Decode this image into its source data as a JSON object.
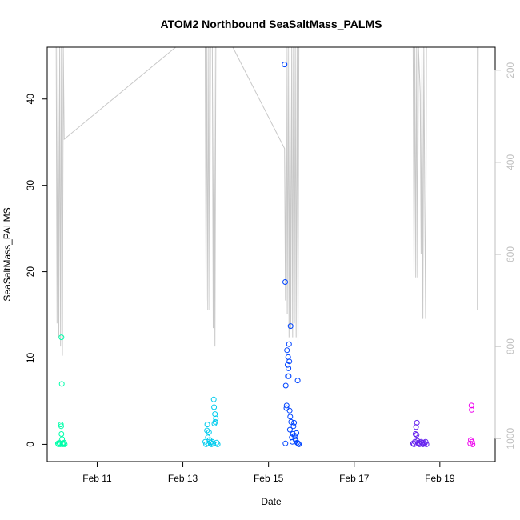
{
  "chart_data": {
    "type": "scatter",
    "title": "ATOM2 Northbound SeaSaltMass_PALMS",
    "xlabel": "Date",
    "ylabel": "SeaSaltMass_PALMS",
    "xlim": [
      "2017-02-09 20:00",
      "2017-02-20 07:00"
    ],
    "ylim": [
      -2,
      46
    ],
    "x_ticks": [
      {
        "x": "2017-02-11",
        "label": "Feb 11"
      },
      {
        "x": "2017-02-13",
        "label": "Feb 13"
      },
      {
        "x": "2017-02-15",
        "label": "Feb 15"
      },
      {
        "x": "2017-02-17",
        "label": "Feb 17"
      },
      {
        "x": "2017-02-19",
        "label": "Feb 19"
      }
    ],
    "y_ticks": [
      0,
      10,
      20,
      30,
      40
    ],
    "right_axis": {
      "label_color": "#bfbfbf",
      "reversed": true,
      "range": [
        150,
        1050
      ],
      "ticks": [
        200,
        400,
        600,
        800,
        1000
      ]
    },
    "grid": false,
    "marker": "open-circle",
    "secondary_line_color": "#c8c8c8",
    "series": [
      {
        "color": "#00ffaa",
        "points": [
          {
            "x": "2017-02-10 02:00",
            "y": 0.1
          },
          {
            "x": "2017-02-10 02:20",
            "y": 0.0
          },
          {
            "x": "2017-02-10 02:40",
            "y": 0.2
          },
          {
            "x": "2017-02-10 03:00",
            "y": 0.1
          },
          {
            "x": "2017-02-10 03:20",
            "y": 0.0
          },
          {
            "x": "2017-02-10 03:40",
            "y": 2.3
          },
          {
            "x": "2017-02-10 03:50",
            "y": 2.1
          },
          {
            "x": "2017-02-10 04:00",
            "y": 1.2
          },
          {
            "x": "2017-02-10 04:00",
            "y": 12.4
          },
          {
            "x": "2017-02-10 04:10",
            "y": 7.0
          },
          {
            "x": "2017-02-10 04:20",
            "y": 0.6
          },
          {
            "x": "2017-02-10 04:30",
            "y": 0.1
          },
          {
            "x": "2017-02-10 04:50",
            "y": 0.0
          },
          {
            "x": "2017-02-10 05:10",
            "y": 0.1
          },
          {
            "x": "2017-02-10 05:30",
            "y": 0.2
          },
          {
            "x": "2017-02-10 05:50",
            "y": 0.0
          }
        ]
      },
      {
        "color": "#00ccee",
        "points": [
          {
            "x": "2017-02-13 12:30",
            "y": 0.3
          },
          {
            "x": "2017-02-13 13:00",
            "y": 0.0
          },
          {
            "x": "2017-02-13 13:30",
            "y": 1.6
          },
          {
            "x": "2017-02-13 13:40",
            "y": 2.3
          },
          {
            "x": "2017-02-13 14:00",
            "y": 0.8
          },
          {
            "x": "2017-02-13 14:20",
            "y": 0.1
          },
          {
            "x": "2017-02-13 14:40",
            "y": 1.4
          },
          {
            "x": "2017-02-13 15:00",
            "y": 0.5
          },
          {
            "x": "2017-02-13 15:30",
            "y": 0.2
          },
          {
            "x": "2017-02-13 16:00",
            "y": 0.0
          },
          {
            "x": "2017-02-13 16:30",
            "y": 0.3
          },
          {
            "x": "2017-02-13 17:00",
            "y": 0.1
          },
          {
            "x": "2017-02-13 17:20",
            "y": 5.2
          },
          {
            "x": "2017-02-13 17:30",
            "y": 4.3
          },
          {
            "x": "2017-02-13 17:40",
            "y": 2.4
          },
          {
            "x": "2017-02-13 18:00",
            "y": 3.5
          },
          {
            "x": "2017-02-13 18:10",
            "y": 2.6
          },
          {
            "x": "2017-02-13 18:30",
            "y": 3.0
          },
          {
            "x": "2017-02-13 19:00",
            "y": 0.2
          },
          {
            "x": "2017-02-13 19:30",
            "y": 0.0
          }
        ]
      },
      {
        "color": "#0044ff",
        "points": [
          {
            "x": "2017-02-15 09:00",
            "y": 44.0
          },
          {
            "x": "2017-02-15 09:20",
            "y": 18.8
          },
          {
            "x": "2017-02-15 09:30",
            "y": 0.1
          },
          {
            "x": "2017-02-15 09:40",
            "y": 6.8
          },
          {
            "x": "2017-02-15 10:00",
            "y": 4.2
          },
          {
            "x": "2017-02-15 10:10",
            "y": 4.5
          },
          {
            "x": "2017-02-15 10:20",
            "y": 10.9
          },
          {
            "x": "2017-02-15 10:40",
            "y": 9.2
          },
          {
            "x": "2017-02-15 10:50",
            "y": 7.9
          },
          {
            "x": "2017-02-15 11:00",
            "y": 10.1
          },
          {
            "x": "2017-02-15 11:10",
            "y": 8.8
          },
          {
            "x": "2017-02-15 11:20",
            "y": 7.9
          },
          {
            "x": "2017-02-15 11:30",
            "y": 11.6
          },
          {
            "x": "2017-02-15 11:40",
            "y": 9.6
          },
          {
            "x": "2017-02-15 11:50",
            "y": 3.9
          },
          {
            "x": "2017-02-15 12:00",
            "y": 1.7
          },
          {
            "x": "2017-02-15 12:10",
            "y": 3.2
          },
          {
            "x": "2017-02-15 12:20",
            "y": 13.7
          },
          {
            "x": "2017-02-15 12:40",
            "y": 2.6
          },
          {
            "x": "2017-02-15 13:00",
            "y": 0.8
          },
          {
            "x": "2017-02-15 13:20",
            "y": 0.3
          },
          {
            "x": "2017-02-15 13:40",
            "y": 1.2
          },
          {
            "x": "2017-02-15 14:00",
            "y": 2.1
          },
          {
            "x": "2017-02-15 14:20",
            "y": 2.5
          },
          {
            "x": "2017-02-15 14:40",
            "y": 1.0
          },
          {
            "x": "2017-02-15 15:00",
            "y": 0.6
          },
          {
            "x": "2017-02-15 15:20",
            "y": 0.4
          },
          {
            "x": "2017-02-15 15:40",
            "y": 1.3
          },
          {
            "x": "2017-02-15 16:00",
            "y": 0.2
          },
          {
            "x": "2017-02-15 16:20",
            "y": 7.4
          },
          {
            "x": "2017-02-15 16:40",
            "y": 0.1
          },
          {
            "x": "2017-02-15 17:00",
            "y": 0.0
          }
        ]
      },
      {
        "color": "#6622ee",
        "points": [
          {
            "x": "2017-02-18 09:00",
            "y": 0.1
          },
          {
            "x": "2017-02-18 09:30",
            "y": 0.0
          },
          {
            "x": "2017-02-18 10:00",
            "y": 0.3
          },
          {
            "x": "2017-02-18 10:20",
            "y": 1.2
          },
          {
            "x": "2017-02-18 10:40",
            "y": 2.0
          },
          {
            "x": "2017-02-18 11:00",
            "y": 1.1
          },
          {
            "x": "2017-02-18 11:10",
            "y": 2.5
          },
          {
            "x": "2017-02-18 11:30",
            "y": 0.4
          },
          {
            "x": "2017-02-18 12:00",
            "y": 0.2
          },
          {
            "x": "2017-02-18 12:30",
            "y": 0.0
          },
          {
            "x": "2017-02-18 13:00",
            "y": 0.1
          },
          {
            "x": "2017-02-18 13:30",
            "y": 0.3
          },
          {
            "x": "2017-02-18 14:00",
            "y": 0.2
          },
          {
            "x": "2017-02-18 14:30",
            "y": 0.0
          },
          {
            "x": "2017-02-18 15:00",
            "y": 0.2
          },
          {
            "x": "2017-02-18 15:30",
            "y": 0.1
          },
          {
            "x": "2017-02-18 16:00",
            "y": 0.3
          },
          {
            "x": "2017-02-18 16:30",
            "y": 0.0
          }
        ]
      },
      {
        "color": "#ee00ee",
        "points": [
          {
            "x": "2017-02-19 17:00",
            "y": 0.1
          },
          {
            "x": "2017-02-19 17:20",
            "y": 0.5
          },
          {
            "x": "2017-02-19 17:40",
            "y": 4.5
          },
          {
            "x": "2017-02-19 17:50",
            "y": 4.0
          },
          {
            "x": "2017-02-19 18:00",
            "y": 0.3
          },
          {
            "x": "2017-02-19 18:20",
            "y": 0.0
          }
        ]
      }
    ],
    "secondary_line": {
      "axis": "right",
      "points": [
        {
          "x": "2017-02-10 01:00",
          "y": 150
        },
        {
          "x": "2017-02-10 01:30",
          "y": 750
        },
        {
          "x": "2017-02-10 02:00",
          "y": 150
        },
        {
          "x": "2017-02-10 02:30",
          "y": 780
        },
        {
          "x": "2017-02-10 03:00",
          "y": 150
        },
        {
          "x": "2017-02-10 03:30",
          "y": 800
        },
        {
          "x": "2017-02-10 04:00",
          "y": 150
        },
        {
          "x": "2017-02-10 04:30",
          "y": 820
        },
        {
          "x": "2017-02-10 05:00",
          "y": 150
        },
        {
          "x": "2017-02-10 05:30",
          "y": 350
        },
        {
          "x": "2017-02-12 20:00",
          "y": 150
        },
        {
          "x": "2017-02-13 12:30",
          "y": 150
        },
        {
          "x": "2017-02-13 13:00",
          "y": 700
        },
        {
          "x": "2017-02-13 13:30",
          "y": 150
        },
        {
          "x": "2017-02-13 14:00",
          "y": 720
        },
        {
          "x": "2017-02-13 14:30",
          "y": 150
        },
        {
          "x": "2017-02-13 15:00",
          "y": 720
        },
        {
          "x": "2017-02-13 15:30",
          "y": 150
        },
        {
          "x": "2017-02-13 16:30",
          "y": 150
        },
        {
          "x": "2017-02-13 17:00",
          "y": 760
        },
        {
          "x": "2017-02-13 17:30",
          "y": 150
        },
        {
          "x": "2017-02-13 18:00",
          "y": 800
        },
        {
          "x": "2017-02-13 18:30",
          "y": 150
        },
        {
          "x": "2017-02-14 04:00",
          "y": 150
        },
        {
          "x": "2017-02-15 09:00",
          "y": 370
        },
        {
          "x": "2017-02-15 09:30",
          "y": 700
        },
        {
          "x": "2017-02-15 10:00",
          "y": 150
        },
        {
          "x": "2017-02-15 10:30",
          "y": 730
        },
        {
          "x": "2017-02-15 11:00",
          "y": 150
        },
        {
          "x": "2017-02-15 11:30",
          "y": 780
        },
        {
          "x": "2017-02-15 12:00",
          "y": 150
        },
        {
          "x": "2017-02-15 12:30",
          "y": 760
        },
        {
          "x": "2017-02-15 13:00",
          "y": 150
        },
        {
          "x": "2017-02-15 13:30",
          "y": 780
        },
        {
          "x": "2017-02-15 14:00",
          "y": 150
        },
        {
          "x": "2017-02-15 14:30",
          "y": 750
        },
        {
          "x": "2017-02-15 15:00",
          "y": 150
        },
        {
          "x": "2017-02-15 15:30",
          "y": 780
        },
        {
          "x": "2017-02-15 16:00",
          "y": 150
        },
        {
          "x": "2017-02-15 16:30",
          "y": 800
        },
        {
          "x": "2017-02-15 17:00",
          "y": 150
        },
        {
          "x": "2017-02-15 17:30",
          "y": 150
        },
        {
          "x": "2017-02-18 09:00",
          "y": 150
        },
        {
          "x": "2017-02-18 09:30",
          "y": 650
        },
        {
          "x": "2017-02-18 10:00",
          "y": 150
        },
        {
          "x": "2017-02-18 10:30",
          "y": 650
        },
        {
          "x": "2017-02-18 11:00",
          "y": 150
        },
        {
          "x": "2017-02-18 11:30",
          "y": 650
        },
        {
          "x": "2017-02-18 12:00",
          "y": 150
        },
        {
          "x": "2017-02-18 13:00",
          "y": 250
        },
        {
          "x": "2017-02-18 13:30",
          "y": 600
        },
        {
          "x": "2017-02-18 14:00",
          "y": 150
        },
        {
          "x": "2017-02-18 14:30",
          "y": 740
        },
        {
          "x": "2017-02-18 15:00",
          "y": 150
        },
        {
          "x": "2017-02-18 15:30",
          "y": 470
        },
        {
          "x": "2017-02-18 16:00",
          "y": 740
        },
        {
          "x": "2017-02-18 16:30",
          "y": 150
        },
        {
          "x": "2017-02-19 21:00",
          "y": 150
        },
        {
          "x": "2017-02-19 21:00",
          "y": 410
        },
        {
          "x": "2017-02-19 21:00",
          "y": 720
        },
        {
          "x": "2017-02-19 21:30",
          "y": 150
        }
      ]
    }
  }
}
